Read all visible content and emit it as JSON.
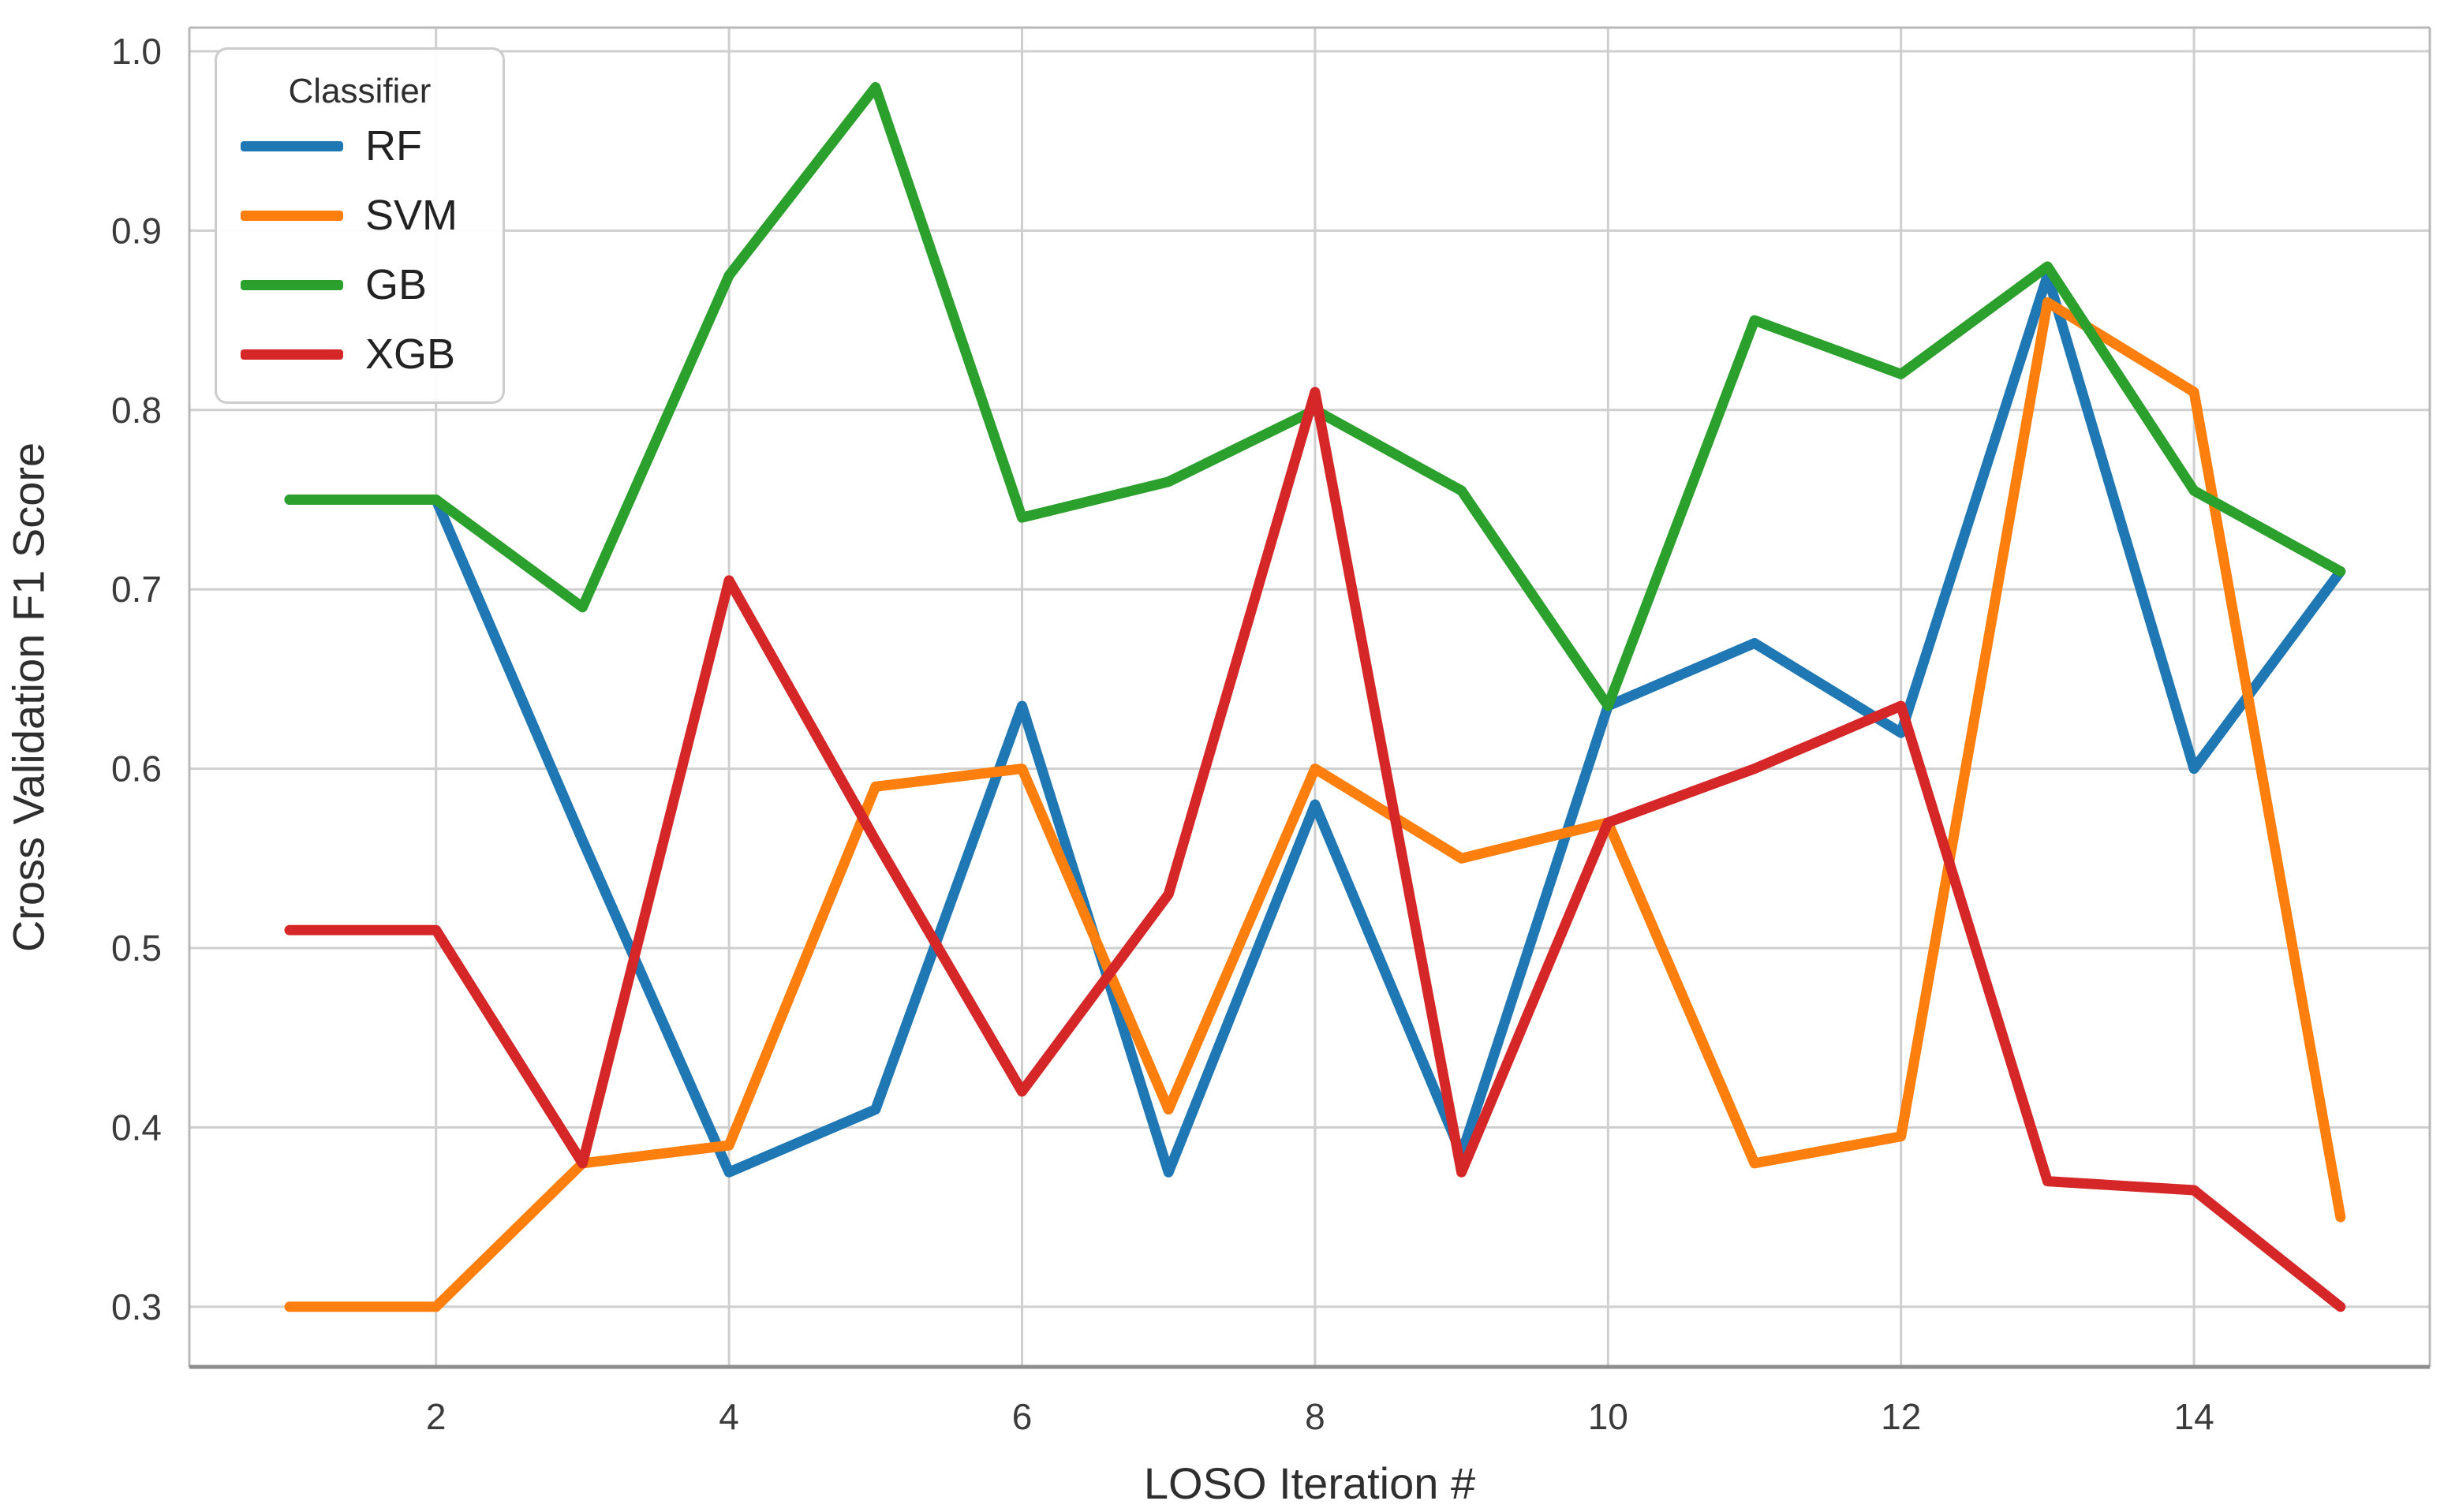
{
  "figure": {
    "background_color": "#ffffff",
    "grid_color": "#cfcfcf",
    "spine_color": "#b8b8b8",
    "bottom_spine_color": "#8d8d8d",
    "tick_label_color": "#3b3b3b"
  },
  "legend": {
    "title": "Classifier"
  },
  "chart_data": {
    "type": "line",
    "title": "",
    "xlabel": "LOSO Iteration #",
    "ylabel": "Cross Validation F1 Score",
    "x": [
      1,
      2,
      3,
      4,
      5,
      6,
      7,
      8,
      9,
      10,
      11,
      12,
      13,
      14,
      15
    ],
    "x_ticks": [
      2,
      4,
      6,
      8,
      10,
      12,
      14
    ],
    "y_ticks": [
      1.0,
      0.9,
      0.8,
      0.7,
      0.6,
      0.5,
      0.4,
      0.3
    ],
    "ylim": [
      0.262,
      1.013
    ],
    "xlim": [
      0.32,
      15.61
    ],
    "grid": true,
    "legend_position": "upper left",
    "legend_title": "Classifier",
    "series": [
      {
        "name": "RF",
        "color": "#1f77b4",
        "values": [
          0.75,
          0.75,
          0.56,
          0.375,
          0.41,
          0.635,
          0.375,
          0.58,
          0.385,
          0.635,
          0.67,
          0.62,
          0.875,
          0.6,
          0.71
        ]
      },
      {
        "name": "SVM",
        "color": "#ff7f0e",
        "values": [
          0.3,
          0.3,
          0.38,
          0.39,
          0.59,
          0.6,
          0.41,
          0.6,
          0.55,
          0.57,
          0.38,
          0.395,
          0.86,
          0.81,
          0.35
        ]
      },
      {
        "name": "GB",
        "color": "#2ca02c",
        "values": [
          0.75,
          0.75,
          0.69,
          0.875,
          0.98,
          0.74,
          0.76,
          0.8,
          0.755,
          0.635,
          0.85,
          0.82,
          0.88,
          0.755,
          0.71
        ]
      },
      {
        "name": "XGB",
        "color": "#d62728",
        "values": [
          0.51,
          0.51,
          0.38,
          0.705,
          0.56,
          0.42,
          0.53,
          0.81,
          0.375,
          0.57,
          0.6,
          0.635,
          0.37,
          0.365,
          0.3
        ]
      }
    ]
  }
}
